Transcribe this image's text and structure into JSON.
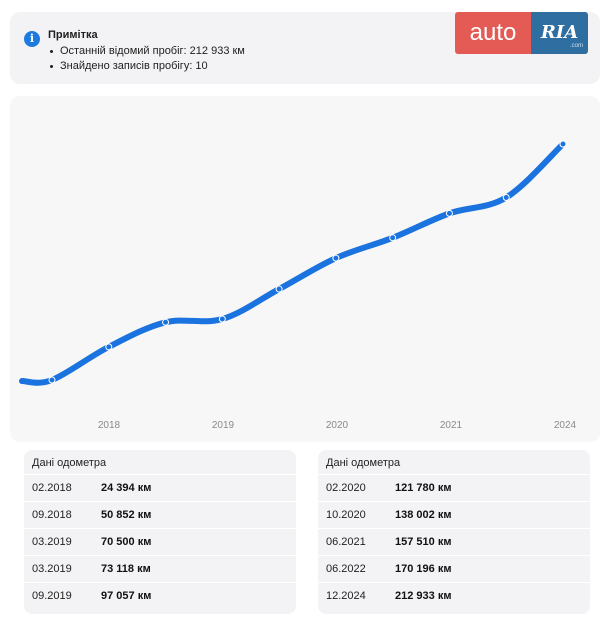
{
  "note": {
    "icon": "info-icon",
    "title": "Примітка",
    "items": [
      "Останній відомий пробіг: 212 933 км",
      "Знайдено записів пробігу: 10"
    ]
  },
  "logo": {
    "auto": "auto",
    "ria": "RIA",
    "com": ".com"
  },
  "chart_data": {
    "type": "line",
    "x_ticks": [
      "2018",
      "2019",
      "2020",
      "2021",
      "2024"
    ],
    "series": [
      {
        "x": [
          "02.2018",
          "09.2018",
          "03.2019",
          "03.2019",
          "09.2019",
          "02.2020",
          "10.2020",
          "06.2021",
          "06.2022",
          "12.2024"
        ],
        "values": [
          24394,
          50852,
          70500,
          73118,
          97057,
          121780,
          138002,
          157510,
          170196,
          212933
        ]
      }
    ],
    "color": "#1a73df",
    "grid": false
  },
  "tables": [
    {
      "header": "Дані одометра",
      "rows": [
        {
          "date": "02.2018",
          "km": "24 394 км"
        },
        {
          "date": "09.2018",
          "km": "50 852 км"
        },
        {
          "date": "03.2019",
          "km": "70 500 км"
        },
        {
          "date": "03.2019",
          "km": "73 118 км"
        },
        {
          "date": "09.2019",
          "km": "97 057 км"
        }
      ]
    },
    {
      "header": "Дані одометра",
      "rows": [
        {
          "date": "02.2020",
          "km": "121 780 км"
        },
        {
          "date": "10.2020",
          "km": "138 002 км"
        },
        {
          "date": "06.2021",
          "km": "157 510 км"
        },
        {
          "date": "06.2022",
          "km": "170 196 км"
        },
        {
          "date": "12.2024",
          "km": "212 933 км"
        }
      ]
    }
  ]
}
